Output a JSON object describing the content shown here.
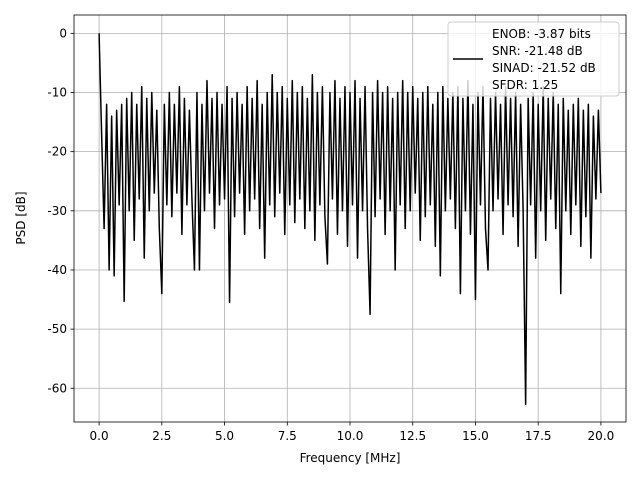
{
  "chart_data": {
    "type": "line",
    "xlabel": "Frequency [MHz]",
    "ylabel": "PSD [dB]",
    "x": [
      0,
      0.1,
      0.2,
      0.3,
      0.4,
      0.5,
      0.6,
      0.7,
      0.8,
      0.9,
      1,
      1.1,
      1.2,
      1.3,
      1.4,
      1.5,
      1.6,
      1.7,
      1.8,
      1.9,
      2,
      2.1,
      2.2,
      2.3,
      2.4,
      2.5,
      2.6,
      2.7,
      2.8,
      2.9,
      3,
      3.1,
      3.2,
      3.3,
      3.4,
      3.5,
      3.6,
      3.7,
      3.8,
      3.9,
      4,
      4.1,
      4.2,
      4.3,
      4.4,
      4.5,
      4.6,
      4.7,
      4.8,
      4.9,
      5,
      5.1,
      5.2,
      5.3,
      5.4,
      5.5,
      5.6,
      5.7,
      5.8,
      5.9,
      6,
      6.1,
      6.2,
      6.3,
      6.4,
      6.5,
      6.6,
      6.7,
      6.8,
      6.9,
      7,
      7.1,
      7.2,
      7.3,
      7.4,
      7.5,
      7.6,
      7.7,
      7.8,
      7.9,
      8,
      8.1,
      8.2,
      8.3,
      8.4,
      8.5,
      8.6,
      8.7,
      8.8,
      8.9,
      9,
      9.1,
      9.2,
      9.3,
      9.4,
      9.5,
      9.6,
      9.7,
      9.8,
      9.9,
      10,
      10.1,
      10.2,
      10.3,
      10.4,
      10.5,
      10.6,
      10.7,
      10.8,
      10.9,
      11,
      11.1,
      11.2,
      11.3,
      11.4,
      11.5,
      11.6,
      11.7,
      11.8,
      11.9,
      12,
      12.1,
      12.2,
      12.3,
      12.4,
      12.5,
      12.6,
      12.7,
      12.8,
      12.9,
      13,
      13.1,
      13.2,
      13.3,
      13.4,
      13.5,
      13.6,
      13.7,
      13.8,
      13.9,
      14,
      14.1,
      14.2,
      14.3,
      14.4,
      14.5,
      14.6,
      14.7,
      14.8,
      14.9,
      15,
      15.1,
      15.2,
      15.3,
      15.4,
      15.5,
      15.6,
      15.7,
      15.8,
      15.9,
      16,
      16.1,
      16.2,
      16.3,
      16.4,
      16.5,
      16.6,
      16.7,
      16.8,
      16.9,
      17,
      17.1,
      17.2,
      17.3,
      17.4,
      17.5,
      17.6,
      17.7,
      17.8,
      17.9,
      18,
      18.1,
      18.2,
      18.3,
      18.4,
      18.5,
      18.6,
      18.7,
      18.8,
      18.9,
      19,
      19.1,
      19.2,
      19.3,
      19.4,
      19.5,
      19.6,
      19.7,
      19.8,
      19.9,
      20
    ],
    "series": [
      {
        "name": "ENOB: -3.87 bits\nSNR: -21.48 dB\nSINAD: -21.52 dB\nSFDR: 1.25",
        "color": "#000000",
        "values": [
          0,
          -17,
          -33,
          -12,
          -40,
          -14,
          -41,
          -13,
          -29,
          -12,
          -45.3,
          -11,
          -30,
          -10,
          -35,
          -12,
          -28,
          -9,
          -38,
          -11,
          -30,
          -10,
          -27,
          -13,
          -33,
          -44,
          -12,
          -29,
          -10,
          -31,
          -12,
          -27,
          -9,
          -34,
          -11,
          -29,
          -13,
          -28,
          -40,
          -10,
          -40,
          -12,
          -30,
          -8,
          -27,
          -11,
          -33,
          -10,
          -29,
          -12,
          -28,
          -9,
          -45.5,
          -11,
          -31,
          -10,
          -27,
          -12,
          -34,
          -9,
          -30,
          -11,
          -28,
          -8,
          -33,
          -12,
          -38,
          -10,
          -29,
          -7,
          -31,
          -10,
          -27,
          -9,
          -34,
          -11,
          -29,
          -8,
          -32,
          -10,
          -28,
          -9,
          -33,
          -11,
          -30,
          -7,
          -35,
          -10,
          -29,
          -9,
          -31,
          -39,
          -10,
          -28,
          -8,
          -34,
          -11,
          -30,
          -9,
          -36,
          -10,
          -29,
          -8,
          -38,
          -11,
          -30,
          -9,
          -33,
          -47.5,
          -10,
          -31,
          -8,
          -28,
          -10,
          -34,
          -9,
          -30,
          -11,
          -40,
          -10,
          -29,
          -8,
          -33,
          -10,
          -30,
          -9,
          -27,
          -11,
          -35,
          -10,
          -31,
          -9,
          -29,
          -12,
          -36,
          -10,
          -41,
          -9,
          -30,
          -11,
          -28,
          -10,
          -33,
          -9,
          -44,
          -11,
          -30,
          -8,
          -34,
          -12,
          -45,
          -10,
          -29,
          -9,
          -33,
          -40,
          -11,
          -30,
          -10,
          -28,
          -12,
          -34,
          -9,
          -29,
          -11,
          -31,
          -10,
          -36,
          -12,
          -30,
          -62.7,
          -11,
          -29,
          -10,
          -38,
          -12,
          -30,
          -9,
          -35,
          -11,
          -28,
          -10,
          -33,
          -12,
          -44,
          -11,
          -30,
          -13,
          -34,
          -12,
          -29,
          -11,
          -36,
          -13,
          -31,
          -12,
          -38,
          -14,
          -28,
          -13,
          -27
        ]
      }
    ],
    "xlim": [
      -1.0,
      21.0
    ],
    "xticks": [
      {
        "value": 0,
        "label": "0.0"
      },
      2.5,
      {
        "value": 5,
        "label": "5.0"
      },
      7.5,
      {
        "value": 10,
        "label": "10.0"
      },
      12.5,
      {
        "value": 15,
        "label": "15.0"
      },
      17.5,
      {
        "value": 20,
        "label": "20.0"
      }
    ],
    "ylim": [
      -65.7,
      3.1
    ],
    "yticks": [
      -60,
      -50,
      -40,
      -30,
      -20,
      -10,
      0
    ],
    "grid": true,
    "legend": "upper right"
  }
}
